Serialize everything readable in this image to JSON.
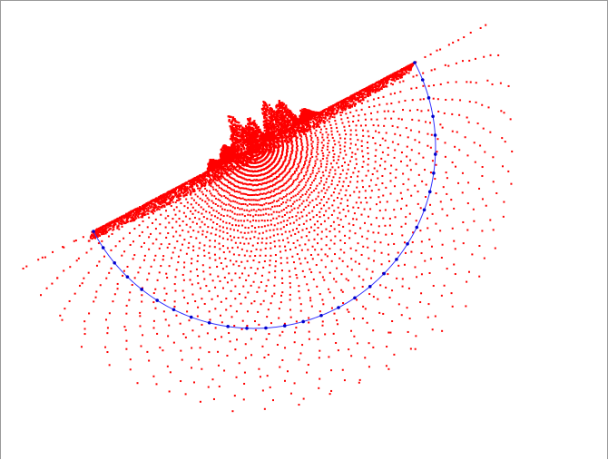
{
  "colors": {
    "points": "#ff0000",
    "boundary_line": "#3333ff",
    "boundary_nodes": "#0000cc",
    "background": "#ffffff",
    "frame": "#9a9a9a"
  },
  "diagram": {
    "description_only": false,
    "semicircle_nodes": 30
  }
}
